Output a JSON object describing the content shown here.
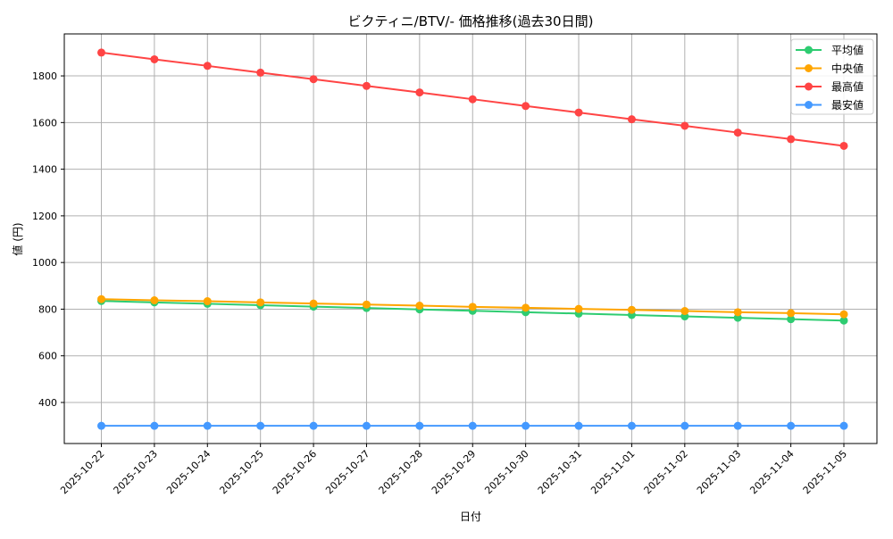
{
  "chart_data": {
    "type": "line",
    "title": "ビクティニ/BTV/- 価格推移(過去30日間)",
    "xlabel": "日付",
    "ylabel": "値 (円)",
    "categories": [
      "2025-10-22",
      "2025-10-23",
      "2025-10-24",
      "2025-10-25",
      "2025-10-26",
      "2025-10-27",
      "2025-10-28",
      "2025-10-29",
      "2025-10-30",
      "2025-10-31",
      "2025-11-01",
      "2025-11-02",
      "2025-11-03",
      "2025-11-04",
      "2025-11-05"
    ],
    "yticks": [
      400,
      600,
      800,
      1000,
      1200,
      1400,
      1600,
      1800
    ],
    "ylim": [
      224,
      1980
    ],
    "grid": true,
    "legend_position": "top-right",
    "series": [
      {
        "name": "平均値",
        "color": "#2ecc71",
        "values": [
          835,
          829,
          823,
          817,
          811,
          805,
          799,
          793,
          787,
          781,
          775,
          769,
          763,
          757,
          751
        ]
      },
      {
        "name": " 中央値",
        "color": "#ffa500",
        "values": [
          843,
          838,
          834,
          829,
          824,
          820,
          815,
          810,
          806,
          801,
          797,
          792,
          787,
          783,
          778
        ]
      },
      {
        "name": "最高値",
        "color": "#ff4444",
        "values": [
          1900,
          1871,
          1843,
          1814,
          1786,
          1757,
          1729,
          1700,
          1671,
          1643,
          1614,
          1586,
          1557,
          1529,
          1500
        ]
      },
      {
        "name": "最安値",
        "color": "#4499ff",
        "values": [
          300,
          300,
          300,
          300,
          300,
          300,
          300,
          300,
          300,
          300,
          300,
          300,
          300,
          300,
          300
        ]
      }
    ]
  }
}
